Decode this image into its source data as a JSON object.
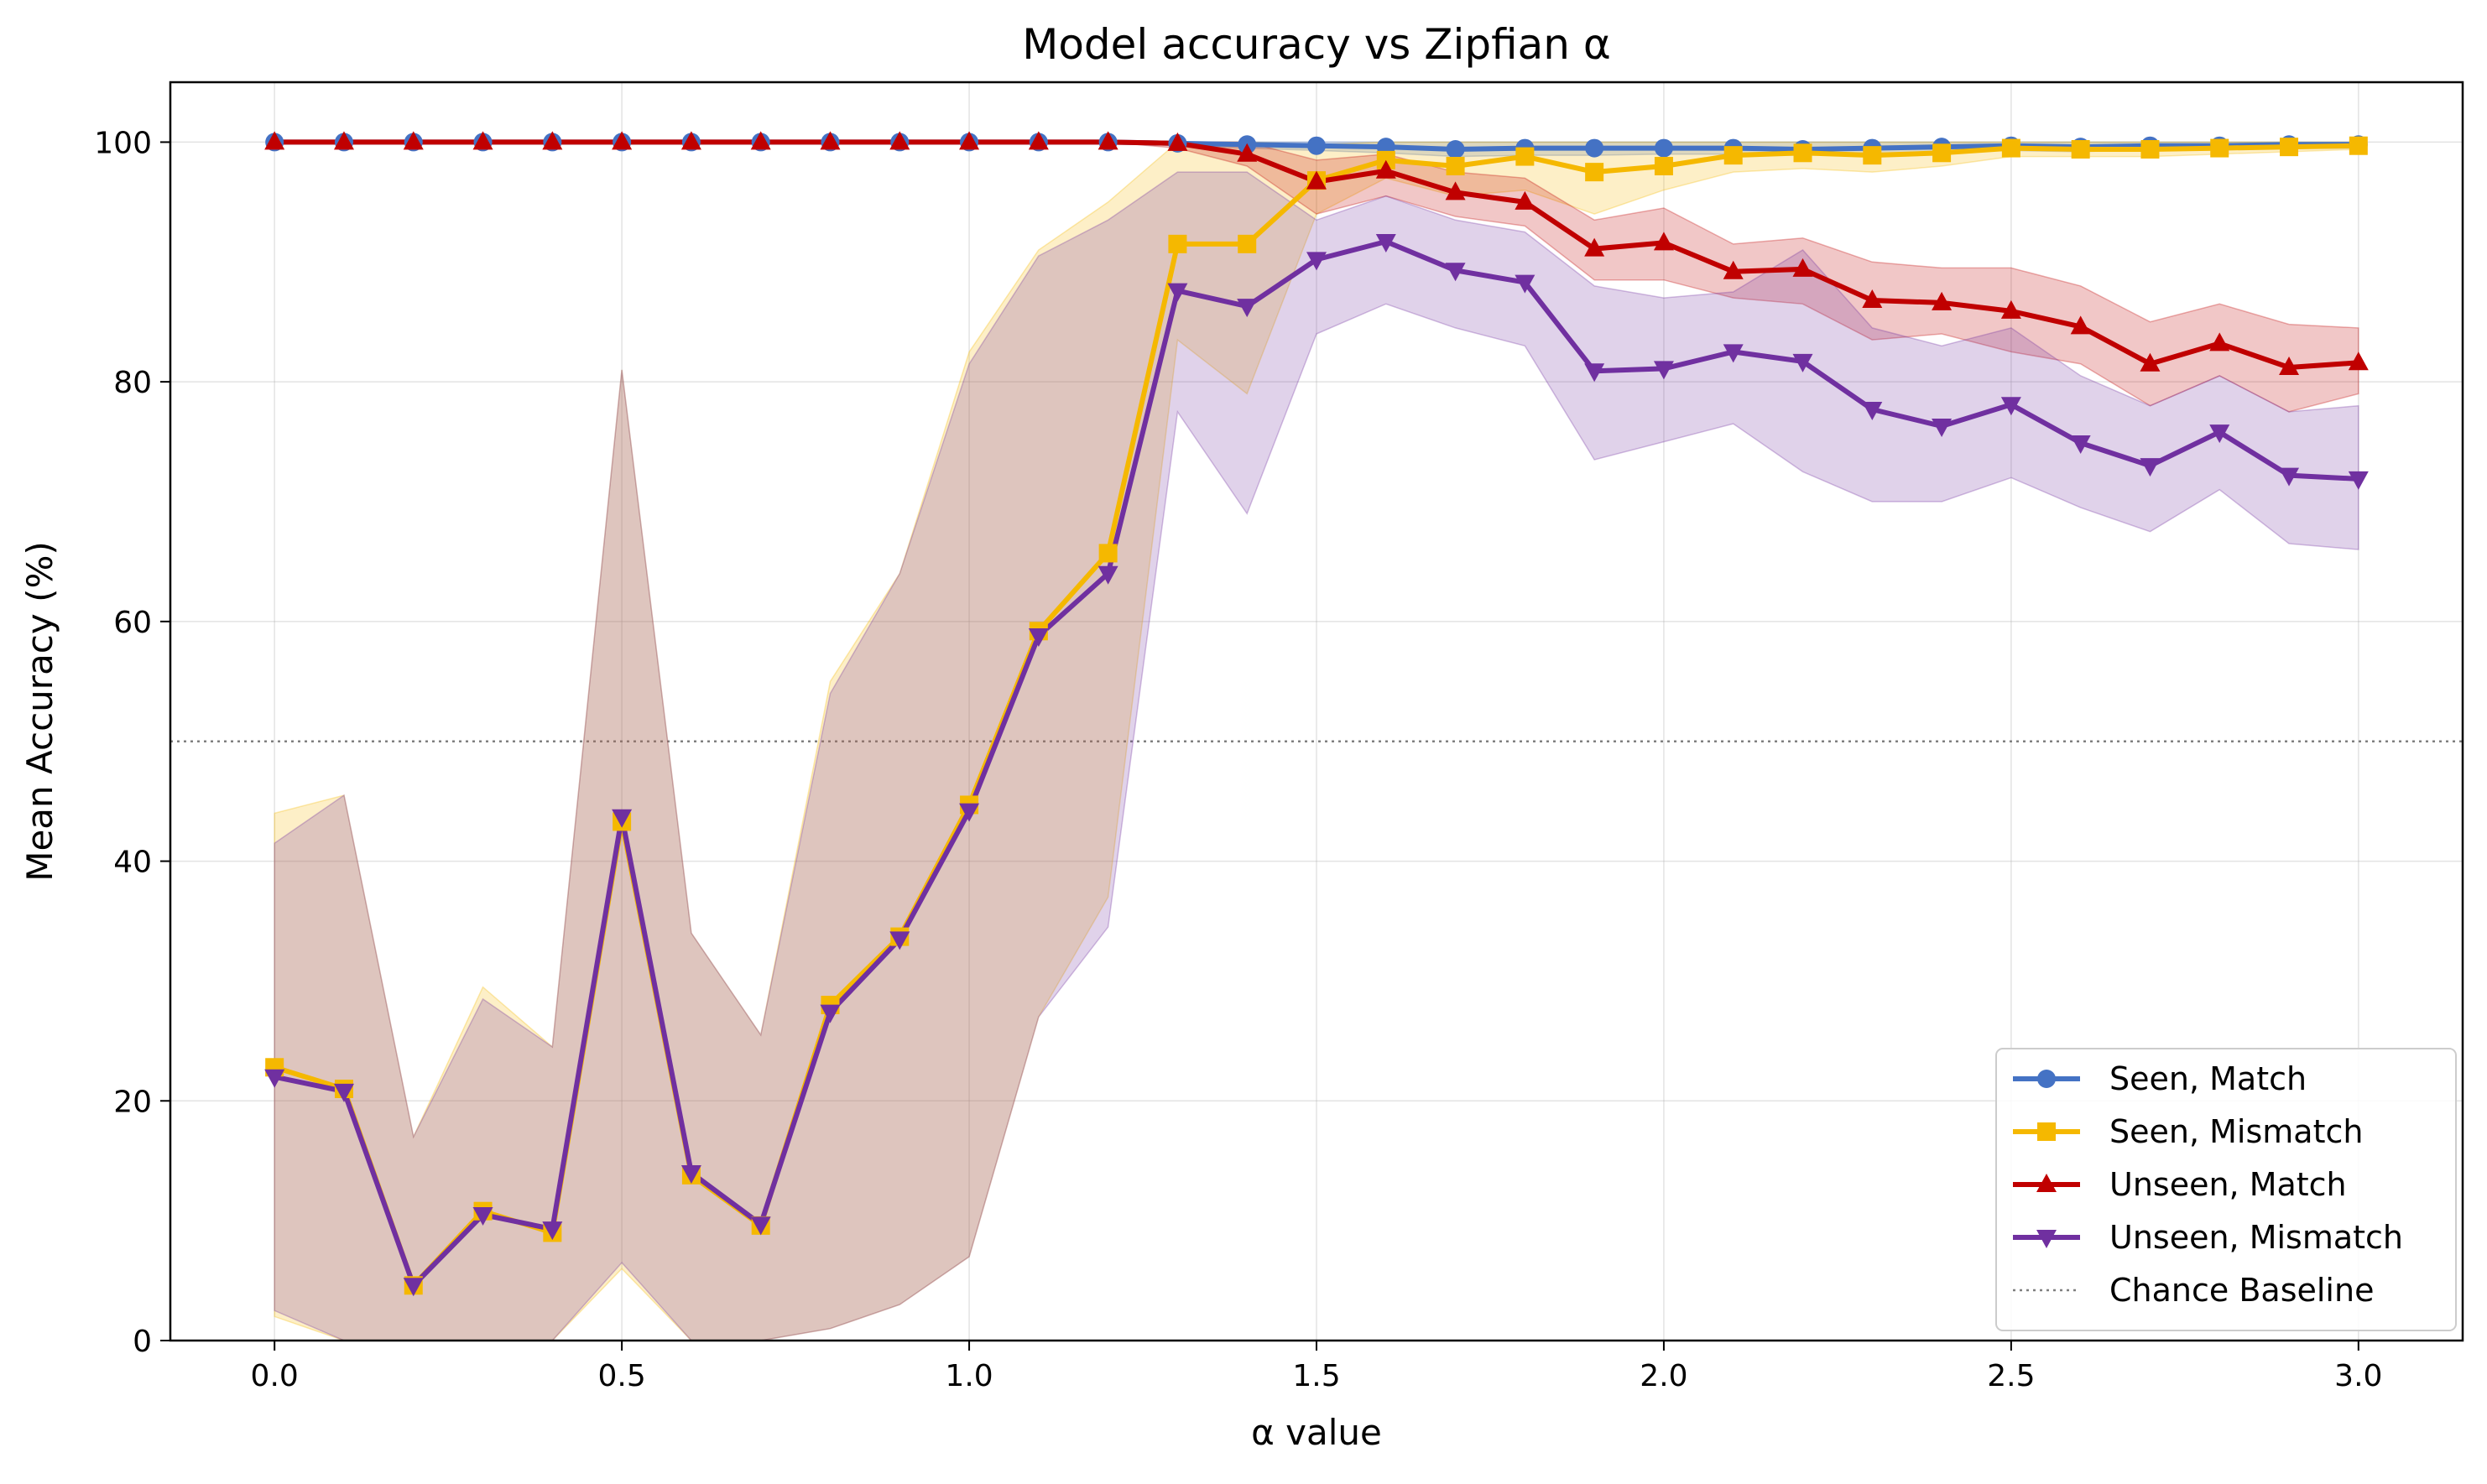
{
  "chart_data": {
    "type": "line",
    "title": "Model accuracy vs Zipfian α",
    "xlabel": "α value",
    "ylabel": "Mean Accuracy (%)",
    "xlim": [
      -0.15,
      3.15
    ],
    "ylim": [
      0,
      105
    ],
    "xticks": [
      0.0,
      0.5,
      1.0,
      1.5,
      2.0,
      2.5,
      3.0
    ],
    "xtick_labels": [
      "0.0",
      "0.5",
      "1.0",
      "1.5",
      "2.0",
      "2.5",
      "3.0"
    ],
    "yticks": [
      0,
      20,
      40,
      60,
      80,
      100
    ],
    "ytick_labels": [
      "0",
      "20",
      "40",
      "60",
      "80",
      "100"
    ],
    "grid": true,
    "legend_position": "bottom-right",
    "x": [
      0.0,
      0.1,
      0.2,
      0.3,
      0.4,
      0.5,
      0.6,
      0.7,
      0.8,
      0.9,
      1.0,
      1.1,
      1.2,
      1.3,
      1.4,
      1.5,
      1.6,
      1.7,
      1.8,
      1.9,
      2.0,
      2.1,
      2.2,
      2.3,
      2.4,
      2.5,
      2.6,
      2.7,
      2.8,
      2.9,
      3.0
    ],
    "series": [
      {
        "name": "Seen, Match",
        "color": "#4472C4",
        "marker": "circle",
        "values": [
          100,
          100,
          100,
          100,
          100,
          100,
          100,
          100,
          100,
          100,
          100,
          100,
          100,
          99.9,
          99.8,
          99.7,
          99.6,
          99.4,
          99.5,
          99.5,
          99.5,
          99.5,
          99.4,
          99.5,
          99.6,
          99.7,
          99.6,
          99.7,
          99.7,
          99.8,
          99.8
        ],
        "lower": [
          100,
          100,
          100,
          100,
          100,
          100,
          100,
          100,
          100,
          100,
          100,
          100,
          100,
          99.7,
          99.5,
          99.3,
          99.1,
          98.8,
          98.9,
          98.9,
          99.0,
          99.0,
          98.9,
          99.0,
          99.2,
          99.3,
          99.2,
          99.4,
          99.4,
          99.5,
          99.5
        ],
        "upper": [
          100,
          100,
          100,
          100,
          100,
          100,
          100,
          100,
          100,
          100,
          100,
          100,
          100,
          100,
          100,
          100,
          100,
          100,
          100,
          100,
          100,
          100,
          100,
          100,
          100,
          100,
          100,
          100,
          100,
          100,
          100
        ]
      },
      {
        "name": "Seen, Mismatch",
        "color": "#F5B800",
        "marker": "square",
        "values": [
          22.8,
          21.0,
          4.6,
          10.8,
          9.0,
          43.3,
          13.8,
          9.6,
          28.0,
          33.7,
          44.7,
          59.2,
          65.7,
          91.5,
          91.5,
          96.8,
          98.5,
          98.0,
          98.8,
          97.5,
          98.0,
          98.9,
          99.1,
          98.9,
          99.1,
          99.5,
          99.4,
          99.4,
          99.5,
          99.6,
          99.7
        ],
        "lower": [
          2.0,
          -1.0,
          -2.0,
          -1.0,
          -1.0,
          6.0,
          -1.0,
          -1.0,
          1.0,
          3.0,
          7.0,
          27.0,
          37.0,
          83.5,
          79.0,
          94.0,
          97.0,
          95.5,
          96.0,
          94.0,
          96.0,
          97.5,
          97.8,
          97.5,
          98.0,
          98.8,
          98.8,
          98.8,
          99.0,
          99.2,
          99.4
        ],
        "upper": [
          44.0,
          45.5,
          17.0,
          29.5,
          24.5,
          81.0,
          34.0,
          25.5,
          55.0,
          64.0,
          82.5,
          91.0,
          95.0,
          100.0,
          100.0,
          99.8,
          100.0,
          100.0,
          100.0,
          100.0,
          100.0,
          100.0,
          100.0,
          100.0,
          100.0,
          100.0,
          100.0,
          100.0,
          100.0,
          100.0,
          100.0
        ]
      },
      {
        "name": "Unseen, Match",
        "color": "#C00000",
        "marker": "triangle-up",
        "values": [
          100,
          100,
          100,
          100,
          100,
          100,
          100,
          100,
          100,
          100,
          100,
          100,
          100,
          99.9,
          99.0,
          96.7,
          97.6,
          95.8,
          95.0,
          91.1,
          91.6,
          89.2,
          89.4,
          86.8,
          86.6,
          85.9,
          84.6,
          81.5,
          83.2,
          81.2,
          81.6
        ],
        "lower": [
          100,
          100,
          100,
          100,
          100,
          100,
          100,
          100,
          100,
          100,
          100,
          100,
          100,
          99.5,
          98.0,
          94.0,
          95.5,
          93.8,
          93.0,
          88.5,
          88.5,
          87.0,
          86.5,
          83.5,
          84.0,
          82.5,
          81.5,
          78.0,
          80.5,
          77.5,
          79.0
        ],
        "upper": [
          100,
          100,
          100,
          100,
          100,
          100,
          100,
          100,
          100,
          100,
          100,
          100,
          100,
          100,
          100,
          98.5,
          99.0,
          97.5,
          97.0,
          93.5,
          94.5,
          91.5,
          92.0,
          90.0,
          89.5,
          89.5,
          88.0,
          85.0,
          86.5,
          84.8,
          84.5
        ]
      },
      {
        "name": "Unseen, Mismatch",
        "color": "#7030A0",
        "marker": "triangle-down",
        "values": [
          22.0,
          20.8,
          4.6,
          10.5,
          9.3,
          43.7,
          14.0,
          9.7,
          27.4,
          33.5,
          44.2,
          58.8,
          64.0,
          87.6,
          86.3,
          90.2,
          91.7,
          89.3,
          88.3,
          80.9,
          81.1,
          82.5,
          81.7,
          77.7,
          76.3,
          78.1,
          74.9,
          73.0,
          75.8,
          72.2,
          71.9
        ],
        "lower": [
          2.5,
          -1.0,
          -2.0,
          -1.0,
          -1.0,
          6.5,
          -1.0,
          -1.0,
          1.0,
          3.0,
          7.0,
          27.0,
          34.5,
          77.5,
          69.0,
          84.0,
          86.5,
          84.5,
          83.0,
          73.5,
          75.0,
          76.5,
          72.5,
          70.0,
          70.0,
          72.0,
          69.5,
          67.5,
          71.0,
          66.5,
          66.0
        ],
        "upper": [
          41.5,
          45.5,
          17.0,
          28.5,
          24.5,
          81.0,
          34.0,
          25.5,
          54.0,
          64.0,
          81.5,
          90.5,
          93.5,
          97.5,
          97.5,
          93.5,
          95.5,
          93.5,
          92.5,
          88.0,
          87.0,
          87.5,
          91.0,
          84.5,
          83.0,
          84.5,
          80.5,
          78.0,
          80.5,
          77.5,
          78.0
        ]
      },
      {
        "name": "Chance Baseline",
        "color": "#7f7f7f",
        "style": "dotted",
        "constant": 50
      }
    ]
  }
}
